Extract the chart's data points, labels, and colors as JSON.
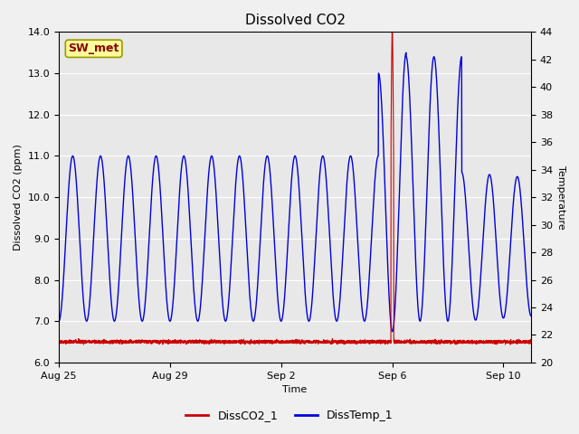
{
  "title": "Dissolved CO2",
  "xlabel": "Time",
  "ylabel_left": "Dissolved CO2 (ppm)",
  "ylabel_right": "Temperature",
  "ylim_left": [
    6.0,
    14.0
  ],
  "ylim_right": [
    20,
    44
  ],
  "plot_bg_color": "#e8e8e8",
  "fig_bg_color": "#f0f0f0",
  "line_co2_color": "#cc0000",
  "line_temp_color": "#0000dd",
  "legend_labels": [
    "DissCO2_1",
    "DissTemp_1"
  ],
  "annotation_label": "SW_met",
  "annotation_color": "#8B0000",
  "annotation_bg": "#ffff99",
  "annotation_border": "#999900",
  "yticks_left": [
    6.0,
    7.0,
    8.0,
    9.0,
    10.0,
    11.0,
    12.0,
    13.0,
    14.0
  ],
  "yticks_right": [
    20,
    22,
    24,
    26,
    28,
    30,
    32,
    34,
    36,
    38,
    40,
    42,
    44
  ],
  "xtick_days": [
    0,
    4,
    8,
    12,
    16
  ],
  "xtick_labels": [
    "Aug 25",
    "Aug 29",
    "Sep 2",
    "Sep 6",
    "Sep 10"
  ],
  "xlim": [
    0,
    17
  ]
}
